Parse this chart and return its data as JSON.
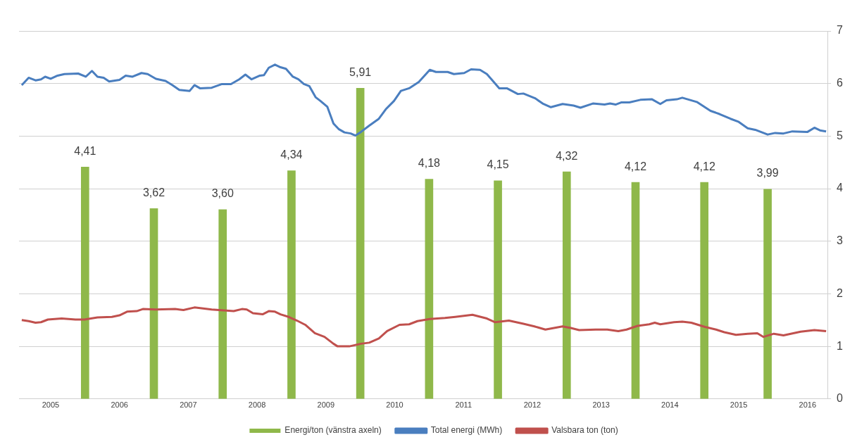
{
  "chart_data": {
    "type": "line",
    "xlim": [
      2005.04,
      2016.79
    ],
    "xticks": [
      {
        "value": 2005.5,
        "label": "2005"
      },
      {
        "value": 2006.5,
        "label": "2006"
      },
      {
        "value": 2007.5,
        "label": "2007"
      },
      {
        "value": 2008.5,
        "label": "2008"
      },
      {
        "value": 2009.5,
        "label": "2009"
      },
      {
        "value": 2010.5,
        "label": "2010"
      },
      {
        "value": 2011.5,
        "label": "2011"
      },
      {
        "value": 2012.5,
        "label": "2012"
      },
      {
        "value": 2013.5,
        "label": "2013"
      },
      {
        "value": 2014.5,
        "label": "2014"
      },
      {
        "value": 2015.5,
        "label": "2015"
      },
      {
        "value": 2016.5,
        "label": "2016"
      }
    ],
    "ylim": [
      0,
      7
    ],
    "yticks": [
      0,
      1,
      2,
      3,
      4,
      5,
      6,
      7
    ],
    "grid": "y",
    "legend": "bottom",
    "series": [
      {
        "name": "Energi/ton (vänstra axeln)",
        "type": "bar",
        "color": "#8fb84a",
        "x": [
          2006.0,
          2007.0,
          2008.0,
          2009.0,
          2010.0,
          2011.0,
          2012.0,
          2013.0,
          2014.0,
          2015.0,
          2015.92
        ],
        "values": [
          4.41,
          3.62,
          3.6,
          4.34,
          5.91,
          4.18,
          4.15,
          4.32,
          4.12,
          4.12,
          3.99
        ],
        "value_labels": [
          "4,41",
          "3,62",
          "3,60",
          "4,34",
          "5,91",
          "4,18",
          "4,15",
          "4,32",
          "4,12",
          "4,12",
          "3,99"
        ]
      },
      {
        "name": "Total energi (MWh)",
        "color": "#4a7ebf",
        "x": [
          2005.08,
          2005.18,
          2005.28,
          2005.36,
          2005.42,
          2005.5,
          2005.6,
          2005.7,
          2005.9,
          2006.01,
          2006.1,
          2006.18,
          2006.27,
          2006.35,
          2006.5,
          2006.59,
          2006.69,
          2006.82,
          2006.91,
          2007.03,
          2007.17,
          2007.27,
          2007.37,
          2007.52,
          2007.59,
          2007.67,
          2007.84,
          2007.99,
          2008.12,
          2008.24,
          2008.33,
          2008.42,
          2008.54,
          2008.6,
          2008.67,
          2008.76,
          2008.84,
          2008.92,
          2009.02,
          2009.1,
          2009.18,
          2009.26,
          2009.35,
          2009.42,
          2009.52,
          2009.61,
          2009.69,
          2009.77,
          2009.86,
          2009.93,
          2010.01,
          2010.13,
          2010.27,
          2010.37,
          2010.49,
          2010.59,
          2010.71,
          2010.85,
          2011.01,
          2011.1,
          2011.27,
          2011.36,
          2011.51,
          2011.61,
          2011.74,
          2011.84,
          2012.02,
          2012.13,
          2012.29,
          2012.37,
          2012.54,
          2012.65,
          2012.77,
          2012.94,
          2013.1,
          2013.2,
          2013.38,
          2013.55,
          2013.63,
          2013.71,
          2013.79,
          2013.91,
          2014.07,
          2014.24,
          2014.36,
          2014.45,
          2014.6,
          2014.68,
          2014.89,
          2015.09,
          2015.22,
          2015.38,
          2015.5,
          2015.63,
          2015.74,
          2015.92,
          2016.03,
          2016.15,
          2016.28,
          2016.5,
          2016.6,
          2016.68,
          2016.77
        ],
        "values": [
          5.97,
          6.11,
          6.06,
          6.08,
          6.13,
          6.09,
          6.15,
          6.18,
          6.19,
          6.13,
          6.24,
          6.13,
          6.11,
          6.04,
          6.07,
          6.15,
          6.13,
          6.2,
          6.18,
          6.09,
          6.05,
          5.97,
          5.88,
          5.86,
          5.97,
          5.91,
          5.92,
          5.99,
          5.99,
          6.08,
          6.17,
          6.08,
          6.15,
          6.16,
          6.3,
          6.36,
          6.31,
          6.28,
          6.13,
          6.08,
          5.99,
          5.95,
          5.74,
          5.67,
          5.56,
          5.24,
          5.13,
          5.07,
          5.05,
          5.01,
          5.08,
          5.2,
          5.33,
          5.51,
          5.67,
          5.86,
          5.91,
          6.03,
          6.26,
          6.22,
          6.22,
          6.18,
          6.2,
          6.27,
          6.26,
          6.18,
          5.91,
          5.91,
          5.8,
          5.81,
          5.72,
          5.62,
          5.55,
          5.61,
          5.58,
          5.54,
          5.62,
          5.6,
          5.62,
          5.6,
          5.64,
          5.64,
          5.69,
          5.7,
          5.61,
          5.68,
          5.7,
          5.73,
          5.65,
          5.48,
          5.42,
          5.33,
          5.27,
          5.15,
          5.12,
          5.03,
          5.06,
          5.05,
          5.09,
          5.08,
          5.16,
          5.11,
          5.09
        ]
      },
      {
        "name": "Valsbara ton (ton)",
        "color": "#c0504d",
        "x": [
          2005.08,
          2005.18,
          2005.28,
          2005.36,
          2005.46,
          2005.66,
          2005.86,
          2005.99,
          2006.18,
          2006.39,
          2006.5,
          2006.61,
          2006.75,
          2006.84,
          2007.03,
          2007.31,
          2007.43,
          2007.59,
          2007.84,
          2008.16,
          2008.28,
          2008.35,
          2008.44,
          2008.58,
          2008.67,
          2008.76,
          2008.84,
          2008.96,
          2009.08,
          2009.2,
          2009.34,
          2009.48,
          2009.61,
          2009.67,
          2009.84,
          2010.01,
          2010.13,
          2010.27,
          2010.39,
          2010.57,
          2010.71,
          2010.83,
          2011.01,
          2011.23,
          2011.38,
          2011.63,
          2011.84,
          2011.96,
          2012.16,
          2012.37,
          2012.53,
          2012.69,
          2012.94,
          2013.06,
          2013.18,
          2013.42,
          2013.59,
          2013.75,
          2013.87,
          2014.03,
          2014.2,
          2014.28,
          2014.36,
          2014.56,
          2014.68,
          2014.81,
          2015.01,
          2015.17,
          2015.29,
          2015.46,
          2015.63,
          2015.77,
          2015.86,
          2016.01,
          2016.15,
          2016.4,
          2016.6,
          2016.77
        ],
        "values": [
          1.5,
          1.48,
          1.45,
          1.46,
          1.51,
          1.53,
          1.51,
          1.51,
          1.55,
          1.56,
          1.59,
          1.66,
          1.67,
          1.71,
          1.7,
          1.71,
          1.69,
          1.74,
          1.7,
          1.67,
          1.71,
          1.7,
          1.63,
          1.61,
          1.67,
          1.66,
          1.61,
          1.56,
          1.49,
          1.41,
          1.25,
          1.18,
          1.05,
          1.0,
          1.0,
          1.05,
          1.07,
          1.15,
          1.29,
          1.41,
          1.42,
          1.48,
          1.52,
          1.54,
          1.56,
          1.6,
          1.53,
          1.46,
          1.49,
          1.43,
          1.38,
          1.32,
          1.38,
          1.35,
          1.31,
          1.32,
          1.32,
          1.29,
          1.32,
          1.39,
          1.42,
          1.45,
          1.42,
          1.46,
          1.47,
          1.45,
          1.37,
          1.32,
          1.27,
          1.22,
          1.24,
          1.25,
          1.18,
          1.24,
          1.21,
          1.28,
          1.31,
          1.29
        ]
      }
    ]
  }
}
